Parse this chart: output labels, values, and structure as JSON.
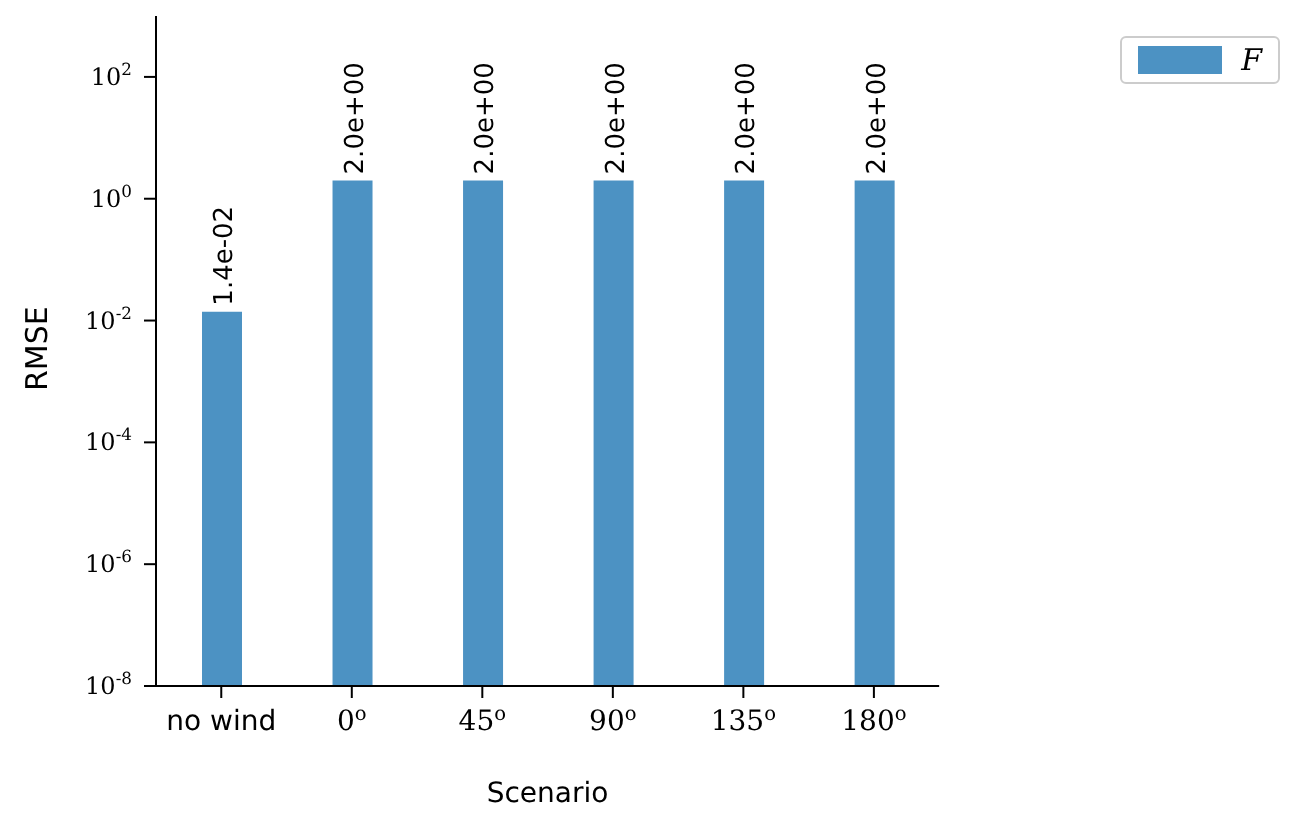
{
  "chart_data": {
    "type": "bar",
    "xlabel": "Scenario",
    "ylabel": "RMSE",
    "categories": [
      "no wind",
      "0$^{o}$",
      "45$^{o}$",
      "90$^{o}$",
      "135$^{o}$",
      "180$^{o}$"
    ],
    "series": [
      {
        "name": "F",
        "color": "#4c92c3",
        "values": [
          0.014,
          2.0,
          2.0,
          2.0,
          2.0,
          2.0
        ],
        "value_labels": [
          "1.4e-02",
          "2.0e+00",
          "2.0e+00",
          "2.0e+00",
          "2.0e+00",
          "2.0e+00"
        ]
      }
    ],
    "log": "y",
    "ylim": [
      1e-08,
      1000
    ],
    "yticks": [
      {
        "value": 1e-08,
        "label": "10$^{-8}$"
      },
      {
        "value": 1e-06,
        "label": "10$^{-6}$"
      },
      {
        "value": 0.0001,
        "label": "10$^{-4}$"
      },
      {
        "value": 0.01,
        "label": "10$^{-2}$"
      },
      {
        "value": 1,
        "label": "10$^{0}$"
      },
      {
        "value": 100,
        "label": "10$^{2}$"
      }
    ],
    "legend": "top right",
    "grid": false
  }
}
